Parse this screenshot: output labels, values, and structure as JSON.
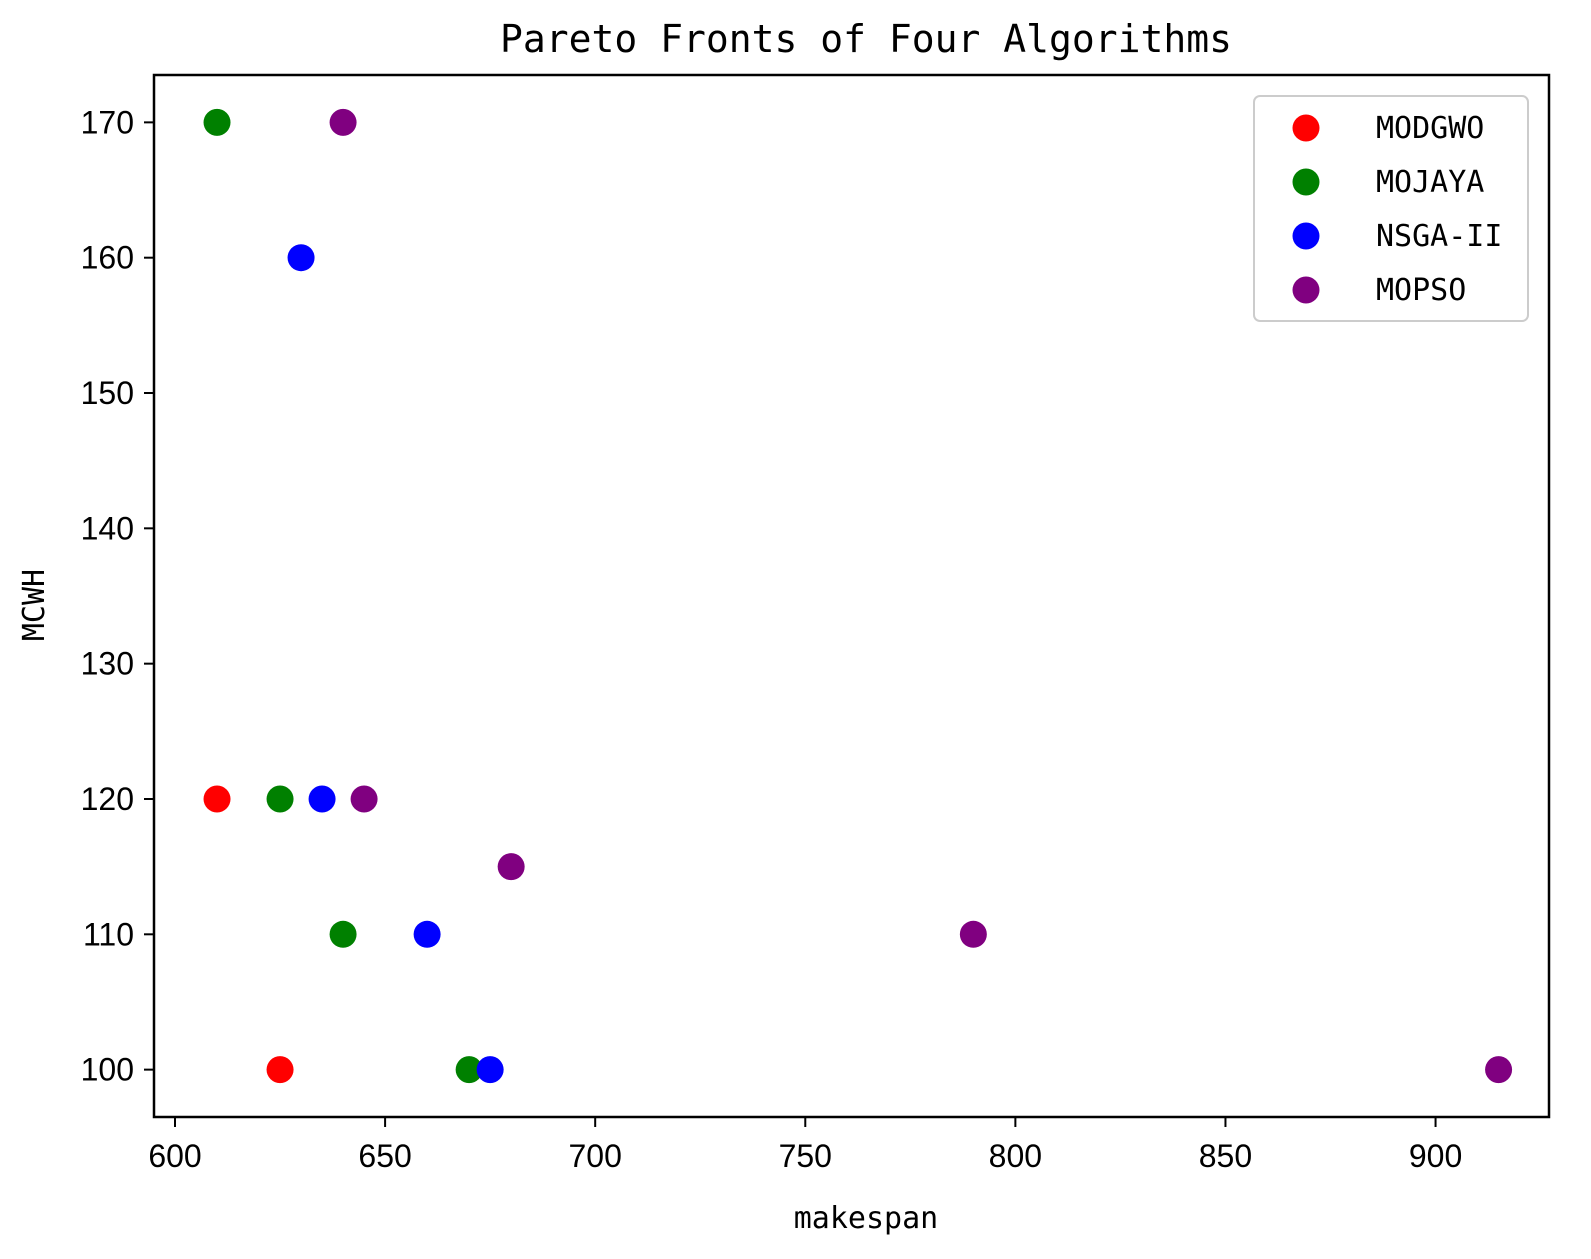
{
  "chart_data": {
    "type": "scatter",
    "title": "Pareto Fronts of Four Algorithms",
    "xlabel": "makespan",
    "ylabel": "MCWH",
    "xlim": [
      595,
      927
    ],
    "ylim": [
      96.5,
      173.5
    ],
    "xticks": [
      600,
      650,
      700,
      750,
      800,
      850,
      900
    ],
    "yticks": [
      100,
      110,
      120,
      130,
      140,
      150,
      160,
      170
    ],
    "grid": false,
    "legend_position": "top-right",
    "series": [
      {
        "name": "MODGWO",
        "color": "#ff0000",
        "points": [
          [
            610,
            120
          ],
          [
            625,
            100
          ]
        ]
      },
      {
        "name": "MOJAYA",
        "color": "#008000",
        "points": [
          [
            610,
            170
          ],
          [
            625,
            120
          ],
          [
            640,
            110
          ],
          [
            670,
            100
          ]
        ]
      },
      {
        "name": "NSGA-II",
        "color": "#0000ff",
        "points": [
          [
            630,
            160
          ],
          [
            635,
            120
          ],
          [
            660,
            110
          ],
          [
            675,
            100
          ]
        ]
      },
      {
        "name": "MOPSO",
        "color": "#800080",
        "points": [
          [
            640,
            170
          ],
          [
            645,
            120
          ],
          [
            680,
            115
          ],
          [
            790,
            110
          ],
          [
            915,
            100
          ]
        ]
      }
    ]
  }
}
